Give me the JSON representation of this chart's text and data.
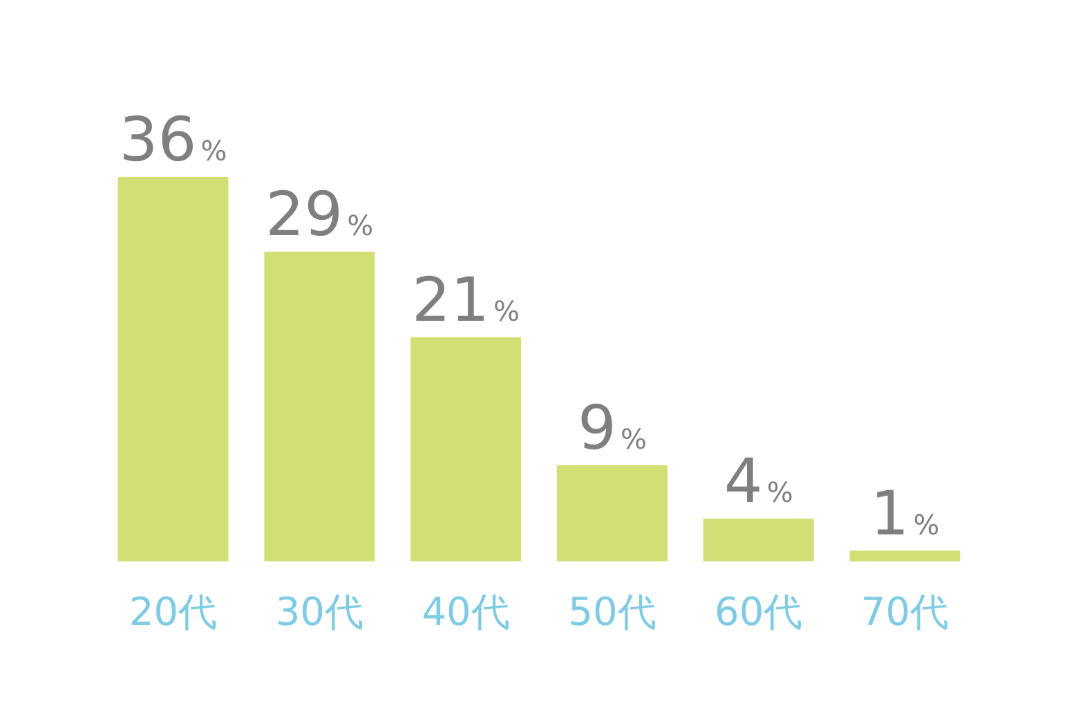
{
  "chart_data": {
    "type": "bar",
    "categories": [
      "20代",
      "30代",
      "40代",
      "50代",
      "60代",
      "70代"
    ],
    "values": [
      36,
      29,
      21,
      9,
      4,
      1
    ],
    "color": "#d2df75",
    "value_labels": [
      "36%",
      "29%",
      "21%",
      "9%",
      "4%",
      "1%"
    ]
  }
}
